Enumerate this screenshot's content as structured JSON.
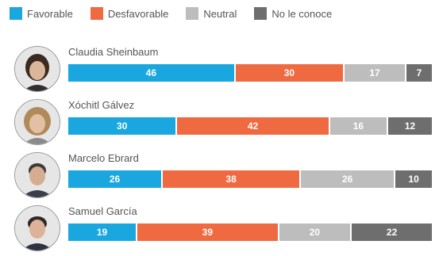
{
  "legend": [
    {
      "label": "Favorable",
      "color": "#1aa7e0"
    },
    {
      "label": "Desfavorable",
      "color": "#ef6a40"
    },
    {
      "label": "Neutral",
      "color": "#bdbdbd"
    },
    {
      "label": "No le conoce",
      "color": "#6e6e6e"
    }
  ],
  "chart_data": {
    "type": "bar",
    "orientation": "horizontal-stacked",
    "categories": [
      "Claudia Sheinbaum",
      "Xóchitl Gálvez",
      "Marcelo Ebrard",
      "Samuel García"
    ],
    "series": [
      {
        "name": "Favorable",
        "values": [
          46,
          30,
          26,
          19
        ]
      },
      {
        "name": "Desfavorable",
        "values": [
          30,
          42,
          38,
          39
        ]
      },
      {
        "name": "Neutral",
        "values": [
          17,
          16,
          26,
          20
        ]
      },
      {
        "name": "No le conoce",
        "values": [
          7,
          12,
          10,
          22
        ]
      }
    ],
    "data_labels": [
      [
        "46",
        "30",
        "17",
        "7"
      ],
      [
        "30",
        "42",
        "16",
        "12"
      ],
      [
        "26",
        "38",
        "26",
        "10"
      ],
      [
        "19",
        "39",
        "20",
        "22"
      ]
    ],
    "legend_position": "top-left",
    "grid": false
  }
}
